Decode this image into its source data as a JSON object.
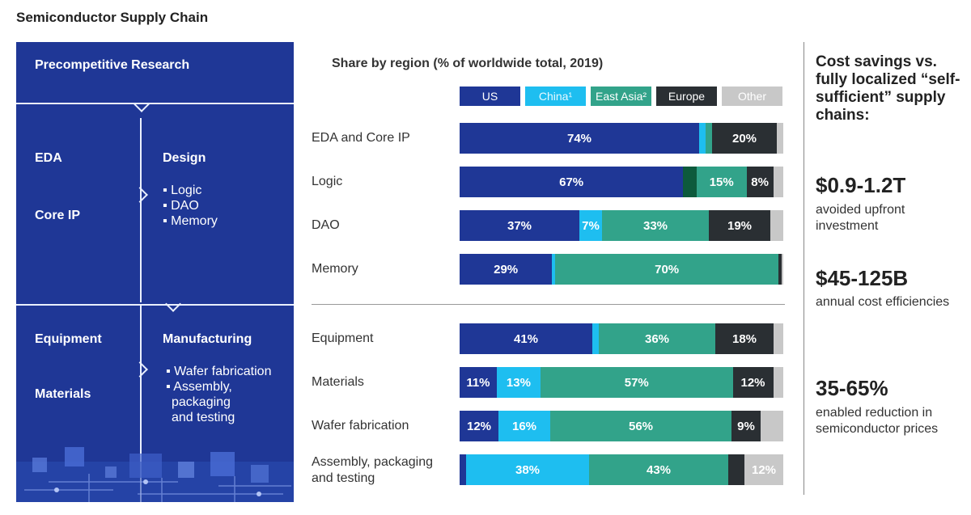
{
  "page_title": "Semiconductor Supply Chain",
  "diagram": {
    "research": "Precompetitive Research",
    "eda": "EDA",
    "core_ip": "Core IP",
    "design": "Design",
    "design_items": [
      "Logic",
      "DAO",
      "Memory"
    ],
    "equipment": "Equipment",
    "materials": "Materials",
    "manufacturing": "Manufacturing",
    "manufacturing_items": [
      "Wafer fabrication",
      "Assembly,",
      "packaging",
      "and testing"
    ]
  },
  "chart_data": {
    "type": "bar",
    "stacked": true,
    "orientation": "horizontal",
    "title": "Share by region (% of worldwide total, 2019)",
    "legend": [
      {
        "name": "US",
        "color": "#1f3796"
      },
      {
        "name": "China¹",
        "color": "#1ebef0"
      },
      {
        "name": "East Asia²",
        "color": "#32a38a"
      },
      {
        "name": "Europe",
        "color": "#2a2f33"
      },
      {
        "name": "Other",
        "color": "#c8c8c8"
      }
    ],
    "categories": [
      "EDA and Core IP",
      "Logic",
      "DAO",
      "Memory",
      "Equipment",
      "Materials",
      "Wafer fabrication",
      "Assembly, packaging and testing"
    ],
    "series": [
      {
        "name": "US",
        "values": [
          74,
          67,
          37,
          29,
          41,
          11,
          12,
          2
        ],
        "labels": [
          "74%",
          "67%",
          "37%",
          "29%",
          "41%",
          "11%",
          "12%",
          ""
        ]
      },
      {
        "name": "China¹",
        "values": [
          2,
          0,
          7,
          1,
          2,
          13,
          16,
          38
        ],
        "labels": [
          "",
          "",
          "7%",
          "",
          "",
          "13%",
          "16%",
          "38%"
        ]
      },
      {
        "name": "East Asia²",
        "values": [
          2,
          15,
          33,
          70,
          36,
          57,
          56,
          43
        ],
        "labels": [
          "",
          "15%",
          "33%",
          "70%",
          "36%",
          "57%",
          "56%",
          "43%"
        ]
      },
      {
        "name": "Europe",
        "values": [
          20,
          8,
          19,
          1,
          18,
          12,
          9,
          5
        ],
        "labels": [
          "20%",
          "8%",
          "19%",
          "",
          "18%",
          "12%",
          "9%",
          ""
        ]
      },
      {
        "name": "Other",
        "values": [
          2,
          3,
          4,
          0.5,
          3,
          3,
          7,
          12
        ],
        "labels": [
          "",
          "",
          "",
          "",
          "",
          "",
          "",
          "12%"
        ]
      }
    ],
    "extra_segments": [
      {
        "row": 1,
        "after_series": "US",
        "value": 4,
        "color": "#0d5a3c"
      }
    ],
    "xlim": [
      0,
      100
    ]
  },
  "right_panel": {
    "heading": "Cost savings vs. fully localized “self-sufficient” supply chains:",
    "stats": [
      {
        "value": "$0.9-1.2T",
        "desc": "avoided upfront investment"
      },
      {
        "value": "$45-125B",
        "desc": "annual cost efficiencies"
      },
      {
        "value": "35-65%",
        "desc": "enabled reduction in semiconductor prices"
      }
    ]
  }
}
